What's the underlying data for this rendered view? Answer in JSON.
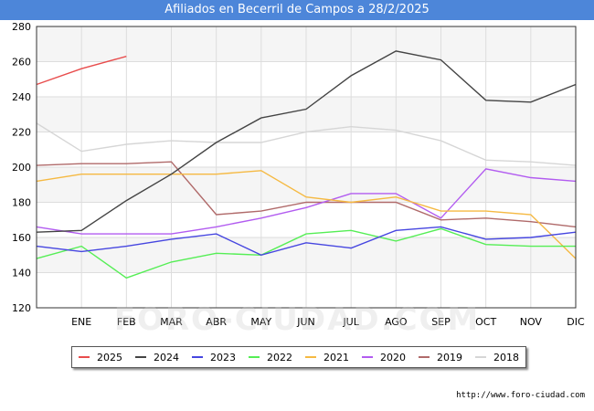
{
  "title": "Afiliados en Becerril de Campos a 28/2/2025",
  "footer": "http://www.foro-ciudad.com",
  "watermark": "FORO-CIUDAD.COM",
  "chart_data": {
    "type": "line",
    "title": "Afiliados en Becerril de Campos a 28/2/2025",
    "categories": [
      "ENE",
      "FEB",
      "MAR",
      "ABR",
      "MAY",
      "JUN",
      "JUL",
      "AGO",
      "SEP",
      "OCT",
      "NOV",
      "DIC"
    ],
    "ylim": [
      120,
      280
    ],
    "yticks": [
      120,
      140,
      160,
      180,
      200,
      220,
      240,
      260,
      280
    ],
    "grid": true,
    "legend_position": "bottom",
    "series": [
      {
        "name": "2025",
        "color": "#e84c4c",
        "points": [
          [
            0,
            247
          ],
          [
            1,
            256
          ],
          [
            2,
            263
          ]
        ]
      },
      {
        "name": "2024",
        "color": "#444444",
        "points": [
          [
            0,
            163
          ],
          [
            1,
            164
          ],
          [
            2,
            181
          ],
          [
            3,
            196
          ],
          [
            4,
            214
          ],
          [
            5,
            228
          ],
          [
            6,
            233
          ],
          [
            7,
            252
          ],
          [
            8,
            266
          ],
          [
            9,
            261
          ],
          [
            10,
            238
          ],
          [
            11,
            237
          ],
          [
            12,
            247
          ]
        ]
      },
      {
        "name": "2023",
        "color": "#4646e0",
        "points": [
          [
            0,
            155
          ],
          [
            1,
            152
          ],
          [
            2,
            155
          ],
          [
            3,
            159
          ],
          [
            4,
            162
          ],
          [
            5,
            150
          ],
          [
            6,
            157
          ],
          [
            7,
            154
          ],
          [
            8,
            164
          ],
          [
            9,
            166
          ],
          [
            10,
            159
          ],
          [
            11,
            160
          ],
          [
            12,
            163
          ]
        ]
      },
      {
        "name": "2022",
        "color": "#55ee55",
        "points": [
          [
            0,
            148
          ],
          [
            1,
            155
          ],
          [
            2,
            137
          ],
          [
            3,
            146
          ],
          [
            4,
            151
          ],
          [
            5,
            150
          ],
          [
            6,
            162
          ],
          [
            7,
            164
          ],
          [
            8,
            158
          ],
          [
            9,
            165
          ],
          [
            10,
            156
          ],
          [
            11,
            155
          ],
          [
            12,
            155
          ]
        ]
      },
      {
        "name": "2021",
        "color": "#f5b942",
        "points": [
          [
            0,
            192
          ],
          [
            1,
            196
          ],
          [
            2,
            196
          ],
          [
            3,
            196
          ],
          [
            4,
            196
          ],
          [
            5,
            198
          ],
          [
            6,
            183
          ],
          [
            7,
            180
          ],
          [
            8,
            183
          ],
          [
            9,
            175
          ],
          [
            10,
            175
          ],
          [
            11,
            173
          ],
          [
            12,
            148
          ]
        ]
      },
      {
        "name": "2020",
        "color": "#b25cf0",
        "points": [
          [
            0,
            166
          ],
          [
            1,
            162
          ],
          [
            2,
            162
          ],
          [
            3,
            162
          ],
          [
            4,
            166
          ],
          [
            5,
            171
          ],
          [
            6,
            177
          ],
          [
            7,
            185
          ],
          [
            8,
            185
          ],
          [
            9,
            171
          ],
          [
            10,
            199
          ],
          [
            11,
            194
          ],
          [
            12,
            192
          ]
        ]
      },
      {
        "name": "2019",
        "color": "#b06a6a",
        "points": [
          [
            0,
            201
          ],
          [
            1,
            202
          ],
          [
            2,
            202
          ],
          [
            3,
            203
          ],
          [
            4,
            173
          ],
          [
            5,
            175
          ],
          [
            6,
            180
          ],
          [
            7,
            180
          ],
          [
            8,
            180
          ],
          [
            9,
            170
          ],
          [
            10,
            171
          ],
          [
            11,
            169
          ],
          [
            12,
            166
          ]
        ]
      },
      {
        "name": "2018",
        "color": "#d6d6d6",
        "points": [
          [
            0,
            225
          ],
          [
            1,
            209
          ],
          [
            2,
            213
          ],
          [
            3,
            215
          ],
          [
            4,
            214
          ],
          [
            5,
            214
          ],
          [
            6,
            220
          ],
          [
            7,
            223
          ],
          [
            8,
            221
          ],
          [
            9,
            215
          ],
          [
            10,
            204
          ],
          [
            11,
            203
          ],
          [
            12,
            201
          ]
        ]
      }
    ]
  }
}
